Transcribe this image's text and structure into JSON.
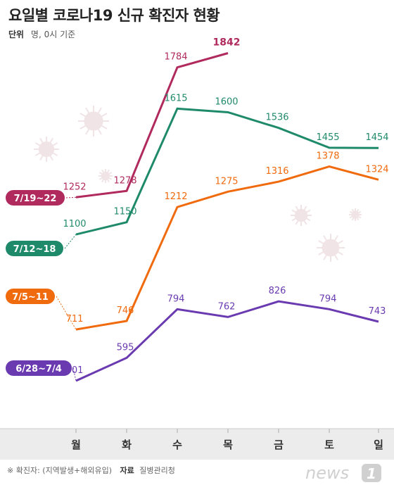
{
  "title": "요일별 코로나19 신규 확진자 현황",
  "subtitle": {
    "unit_label": "단위",
    "unit_text": "명, 0시 기준"
  },
  "footnote": {
    "note": "※ 확진자: (지역발생+해외유입)",
    "source_label": "자료",
    "source": "질병관리청"
  },
  "logo": {
    "text": "news",
    "mark": "1"
  },
  "colors": {
    "axis_band": "#ececec",
    "background": "#ffffff"
  },
  "chart_data": {
    "type": "line",
    "categories": [
      "월",
      "화",
      "수",
      "목",
      "금",
      "토",
      "일"
    ],
    "ylim": [
      300,
      1900
    ],
    "series": [
      {
        "name": "7/19~22",
        "color": "#b02a5e",
        "values": [
          1252,
          1278,
          1784,
          1842,
          null,
          null,
          null
        ]
      },
      {
        "name": "7/12~18",
        "color": "#1f8a6a",
        "values": [
          1100,
          1150,
          1615,
          1600,
          1536,
          1455,
          1454
        ]
      },
      {
        "name": "7/5~11",
        "color": "#f06a0e",
        "values": [
          711,
          746,
          1212,
          1275,
          1316,
          1378,
          1324
        ]
      },
      {
        "name": "6/28~7/4",
        "color": "#6a3ab0",
        "values": [
          501,
          595,
          794,
          762,
          826,
          794,
          743
        ]
      }
    ]
  }
}
